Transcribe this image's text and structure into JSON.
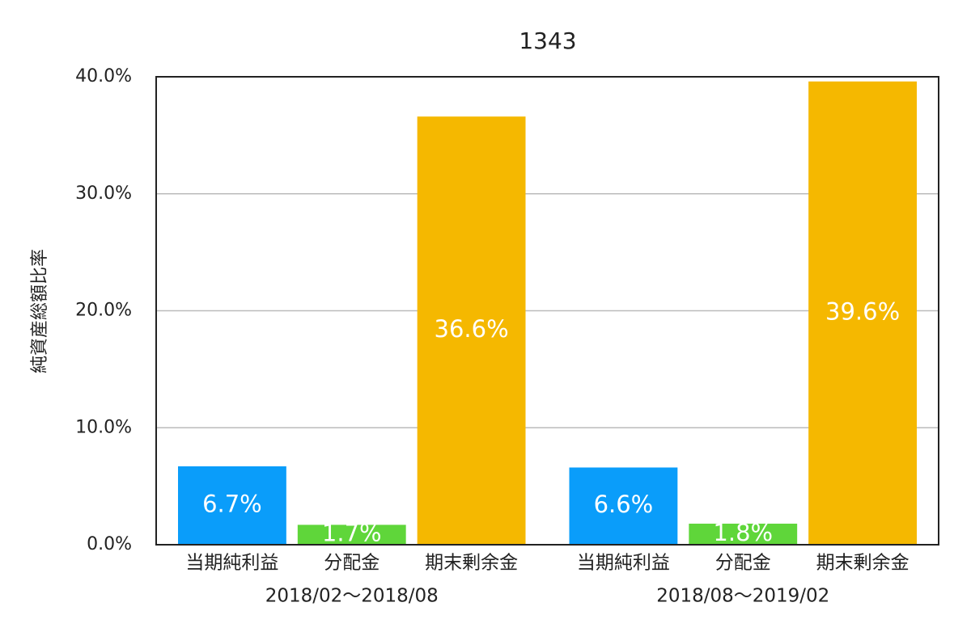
{
  "chart_data": {
    "type": "grouped-bar",
    "title": "1343",
    "y_label": "純資産総額比率",
    "groups": [
      {
        "name": "2018/02〜2018/08",
        "categories": [
          "当期純利益",
          "分配金",
          "期末剰余金"
        ],
        "values": [
          6.7,
          1.7,
          36.6
        ],
        "value_labels": [
          "6.7%",
          "1.7%",
          "36.6%"
        ]
      },
      {
        "name": "2018/08〜2019/02",
        "categories": [
          "当期純利益",
          "分配金",
          "期末剰余金"
        ],
        "values": [
          6.6,
          1.8,
          39.6
        ],
        "value_labels": [
          "6.6%",
          "1.8%",
          "39.6%"
        ]
      }
    ],
    "colors": [
      "#0a9dfa",
      "#5fd63a",
      "#f5b800"
    ],
    "ylim": [
      0,
      40
    ],
    "yticks": [
      {
        "value": 0,
        "label": "0.0%"
      },
      {
        "value": 10,
        "label": "10.0%"
      },
      {
        "value": 20,
        "label": "20.0%"
      },
      {
        "value": 30,
        "label": "30.0%"
      },
      {
        "value": 40,
        "label": "40.0%"
      }
    ],
    "grid": true
  }
}
